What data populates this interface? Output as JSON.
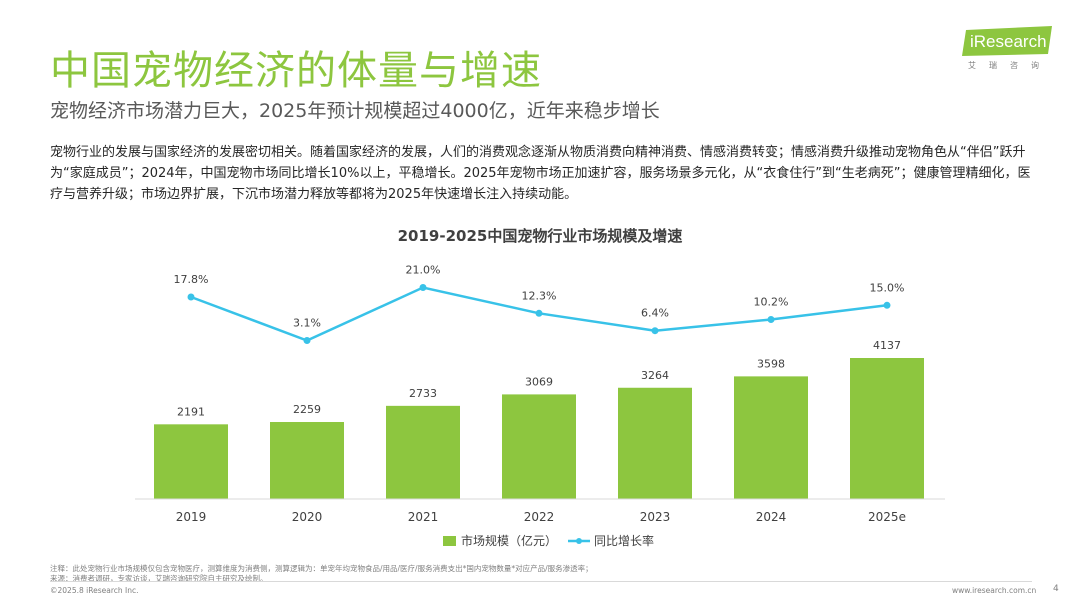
{
  "header": {
    "title": "中国宠物经济的体量与增速",
    "subtitle": "宠物经济市场潜力巨大，2025年预计规模超过4000亿，近年来稳步增长"
  },
  "body": {
    "paragraph": "宠物行业的发展与国家经济的发展密切相关。随着国家经济的发展，人们的消费观念逐渐从物质消费向精神消费、情感消费转变；情感消费升级推动宠物角色从“伴侣”跃升为“家庭成员”；2024年，中国宠物市场同比增长10%以上，平稳增长。2025年宠物市场正加速扩容，服务场景多元化，从“衣食住行”到“生老病死”；健康管理精细化，医疗与营养升级；市场边界扩展，下沉市场潜力释放等都将为2025年快速增长注入持续动能。"
  },
  "logo": {
    "text": "iResearch",
    "sub": "艾瑞咨询"
  },
  "colors": {
    "title": "#8dc63f",
    "bar": "#8dc63f",
    "line": "#38c2e8"
  },
  "chart_data": {
    "type": "bar",
    "title": "2019-2025中国宠物行业市场规模及增速",
    "categories": [
      "2019",
      "2020",
      "2021",
      "2022",
      "2023",
      "2024",
      "2025e"
    ],
    "series": [
      {
        "name": "市场规模（亿元）",
        "type": "bar",
        "values": [
          2191,
          2259,
          2733,
          3069,
          3264,
          3598,
          4137
        ]
      },
      {
        "name": "同比增长率",
        "type": "line",
        "values": [
          17.8,
          3.1,
          21.0,
          12.3,
          6.4,
          10.2,
          15.0
        ],
        "labels": [
          "17.8%",
          "3.1%",
          "21.0%",
          "12.3%",
          "6.4%",
          "10.2%",
          "15.0%"
        ]
      }
    ],
    "legend_position": "bottom",
    "grid": false
  },
  "footer": {
    "note1": "注释：此处宠物行业市场规模仅包含宠物医疗，测算维度为消费侧，测算逻辑为：单宠年均宠物食品/用品/医疗/服务消费支出*国内宠物数量*对应产品/服务渗透率；",
    "note2": "来源：消费者调研，专家访谈，艾瑞咨询研究院自主研究及绘制。",
    "copyright": "©2025.8 iResearch Inc.",
    "website": "www.iresearch.com.cn",
    "page": "4"
  }
}
